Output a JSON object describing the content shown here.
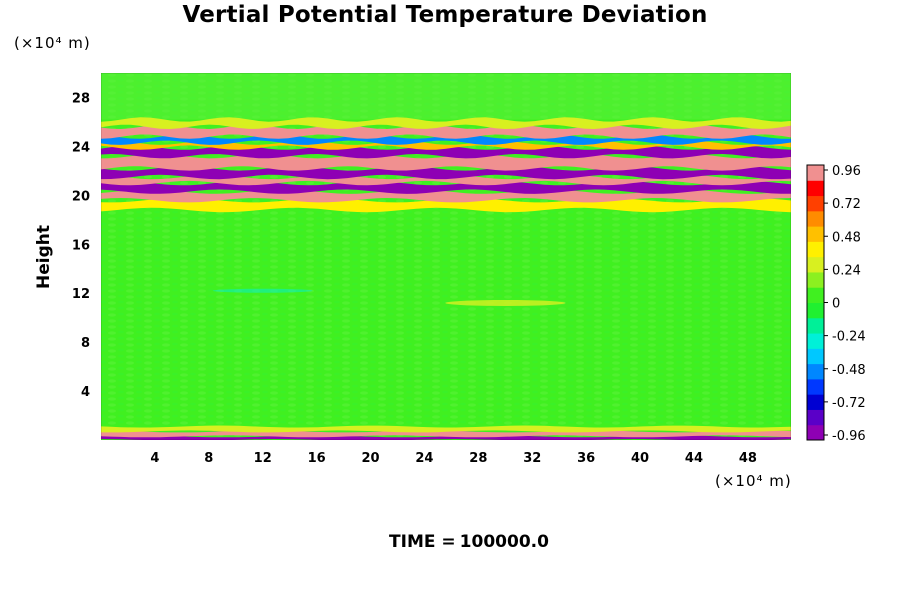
{
  "chart_data": {
    "type": "heatmap",
    "title": "Vertial Potential Temperature Deviation",
    "xlabel": "",
    "ylabel": "Height",
    "x_unit": "(×10⁴ m)",
    "y_unit": "(×10⁴ m)",
    "x_ticks": [
      4,
      8,
      12,
      16,
      20,
      24,
      28,
      32,
      36,
      40,
      44,
      48
    ],
    "y_ticks": [
      4,
      8,
      12,
      16,
      20,
      24,
      28
    ],
    "xlim": [
      0,
      51.2
    ],
    "ylim": [
      0,
      30
    ],
    "colorbar": {
      "ticks": [
        "0.96",
        "0.72",
        "0.48",
        "0.24",
        "0",
        "-0.24",
        "-0.48",
        "-0.72",
        "-0.96"
      ],
      "range": [
        -0.96,
        0.96
      ]
    },
    "bands": [
      {
        "y_range": [
          0,
          0.3
        ],
        "value": -0.9
      },
      {
        "y_range": [
          0.3,
          0.7
        ],
        "value": 0.96
      },
      {
        "y_range": [
          0.7,
          1.1
        ],
        "value": 0.3
      },
      {
        "y_range": [
          18.8,
          19.6
        ],
        "value": 0.4
      },
      {
        "y_range": [
          19.6,
          20.3
        ],
        "value": 0.96
      },
      {
        "y_range": [
          20.3,
          21.0
        ],
        "value": -0.96
      },
      {
        "y_range": [
          21.0,
          21.5
        ],
        "value": 0.9
      },
      {
        "y_range": [
          21.5,
          22.2
        ],
        "value": -0.96
      },
      {
        "y_range": [
          22.2,
          23.2
        ],
        "value": 0.96
      },
      {
        "y_range": [
          23.2,
          23.9
        ],
        "value": -0.96
      },
      {
        "y_range": [
          23.9,
          24.3
        ],
        "value": 0.5
      },
      {
        "y_range": [
          24.3,
          24.8
        ],
        "value": -0.5
      },
      {
        "y_range": [
          24.8,
          25.6
        ],
        "value": 0.9
      },
      {
        "y_range": [
          25.6,
          26.2
        ],
        "value": 0.3
      }
    ]
  },
  "footer": {
    "time_label": "TIME =",
    "time_value": "100000.0"
  }
}
